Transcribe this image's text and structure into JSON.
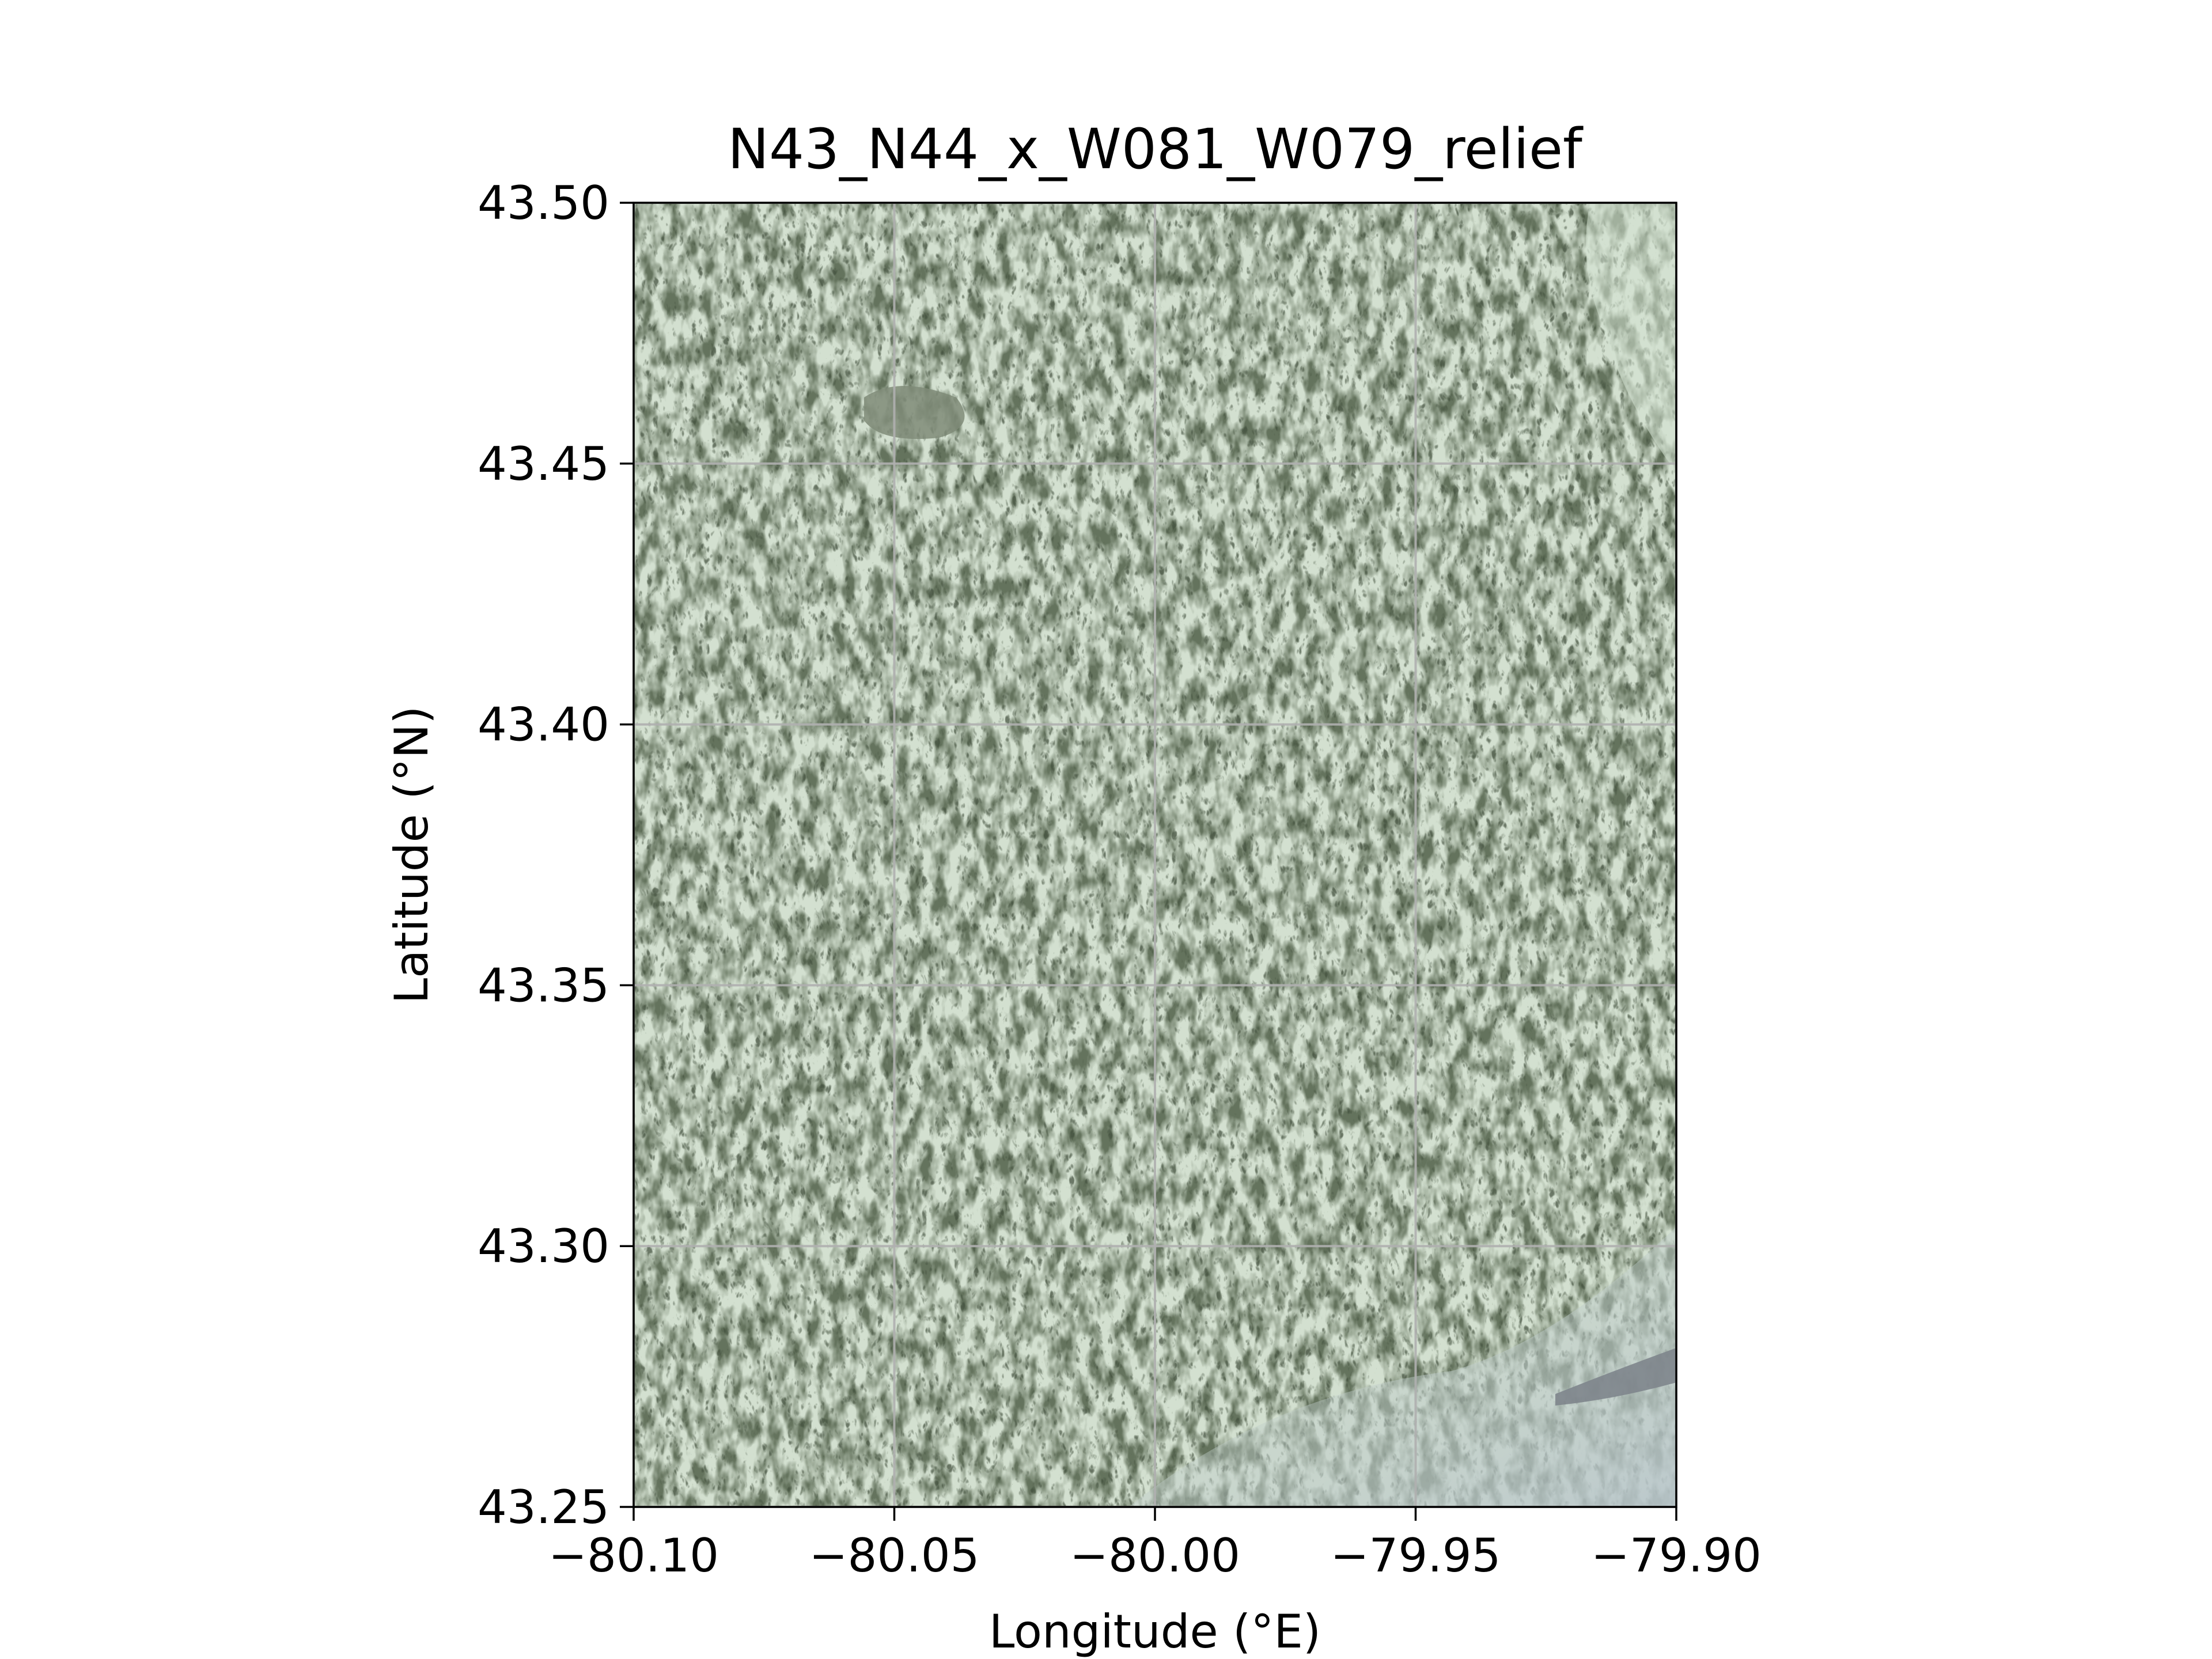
{
  "chart_data": {
    "type": "heatmap",
    "subtype": "shaded-relief-map",
    "title": "N43_N44_x_W081_W079_relief",
    "xlabel": "Longitude (°E)",
    "ylabel": "Latitude (°N)",
    "xlim": [
      -80.1,
      -79.9
    ],
    "ylim": [
      43.25,
      43.5
    ],
    "xticks": [
      -80.1,
      -80.05,
      -80.0,
      -79.95,
      -79.9
    ],
    "xtick_labels": [
      "−80.10",
      "−80.05",
      "−80.00",
      "−79.95",
      "−79.90"
    ],
    "yticks": [
      43.25,
      43.3,
      43.35,
      43.4,
      43.45,
      43.5
    ],
    "ytick_labels": [
      "43.25",
      "43.30",
      "43.35",
      "43.40",
      "43.45",
      "43.50"
    ],
    "grid": true,
    "colors": {
      "terrain_dark": "#4a5a44",
      "terrain_mid": "#7f8f78",
      "terrain_light": "#c9d8c6",
      "water": "#7e858c",
      "lowland_blue": "#aab7c0",
      "grid": "#b0b0b0"
    }
  }
}
